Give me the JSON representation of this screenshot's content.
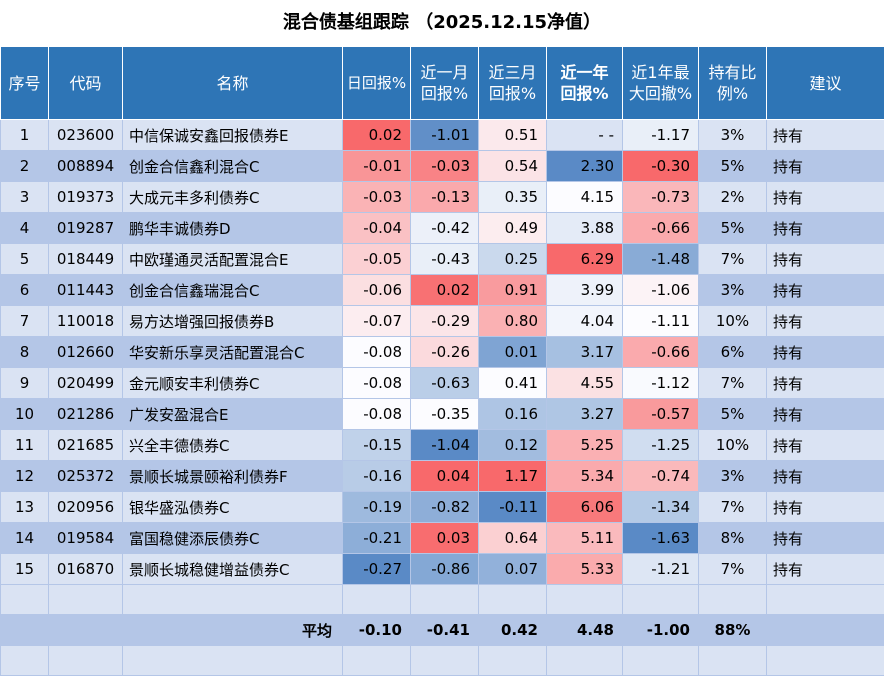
{
  "title": "混合债基组跟踪 （2025.12.15净值）",
  "headers": [
    {
      "line1": "序号",
      "line2": ""
    },
    {
      "line1": "代码",
      "line2": ""
    },
    {
      "line1": "名称",
      "line2": ""
    },
    {
      "line1": "日回报%",
      "line2": ""
    },
    {
      "line1": "近一月",
      "line2": "回报%"
    },
    {
      "line1": "近三月",
      "line2": "回报%"
    },
    {
      "line1": "近一年",
      "line2": "回报%"
    },
    {
      "line1": "近1年最",
      "line2": "大回撤%"
    },
    {
      "line1": "持有比",
      "line2": "例%"
    },
    {
      "line1": "建议",
      "line2": ""
    }
  ],
  "rows": [
    {
      "no": "1",
      "code": "023600",
      "name": "中信保诚安鑫回报债券E",
      "d": "0.02",
      "m1": "-1.01",
      "m3": "0.51",
      "y1": "- -",
      "dd": "-1.17",
      "hold": "3%",
      "adv": "持有"
    },
    {
      "no": "2",
      "code": "008894",
      "name": "创金合信鑫利混合C",
      "d": "-0.01",
      "m1": "-0.03",
      "m3": "0.54",
      "y1": "2.30",
      "dd": "-0.30",
      "hold": "5%",
      "adv": "持有"
    },
    {
      "no": "3",
      "code": "019373",
      "name": "大成元丰多利债券C",
      "d": "-0.03",
      "m1": "-0.13",
      "m3": "0.35",
      "y1": "4.15",
      "dd": "-0.73",
      "hold": "2%",
      "adv": "持有"
    },
    {
      "no": "4",
      "code": "019287",
      "name": "鹏华丰诚债券D",
      "d": "-0.04",
      "m1": "-0.42",
      "m3": "0.49",
      "y1": "3.88",
      "dd": "-0.66",
      "hold": "5%",
      "adv": "持有"
    },
    {
      "no": "5",
      "code": "018449",
      "name": "中欧瑾通灵活配置混合E",
      "d": "-0.05",
      "m1": "-0.43",
      "m3": "0.25",
      "y1": "6.29",
      "dd": "-1.48",
      "hold": "7%",
      "adv": "持有"
    },
    {
      "no": "6",
      "code": "011443",
      "name": "创金合信鑫瑞混合C",
      "d": "-0.06",
      "m1": "0.02",
      "m3": "0.91",
      "y1": "3.99",
      "dd": "-1.06",
      "hold": "3%",
      "adv": "持有"
    },
    {
      "no": "7",
      "code": "110018",
      "name": "易方达增强回报债券B",
      "d": "-0.07",
      "m1": "-0.29",
      "m3": "0.80",
      "y1": "4.04",
      "dd": "-1.11",
      "hold": "10%",
      "adv": "持有"
    },
    {
      "no": "8",
      "code": "012660",
      "name": "华安新乐享灵活配置混合C",
      "d": "-0.08",
      "m1": "-0.26",
      "m3": "0.01",
      "y1": "3.17",
      "dd": "-0.66",
      "hold": "6%",
      "adv": "持有"
    },
    {
      "no": "9",
      "code": "020499",
      "name": "金元顺安丰利债券C",
      "d": "-0.08",
      "m1": "-0.63",
      "m3": "0.41",
      "y1": "4.55",
      "dd": "-1.12",
      "hold": "7%",
      "adv": "持有"
    },
    {
      "no": "10",
      "code": "021286",
      "name": "广发安盈混合E",
      "d": "-0.08",
      "m1": "-0.35",
      "m3": "0.16",
      "y1": "3.27",
      "dd": "-0.57",
      "hold": "5%",
      "adv": "持有"
    },
    {
      "no": "11",
      "code": "021685",
      "name": "兴全丰德债券C",
      "d": "-0.15",
      "m1": "-1.04",
      "m3": "0.12",
      "y1": "5.25",
      "dd": "-1.25",
      "hold": "10%",
      "adv": "持有"
    },
    {
      "no": "12",
      "code": "025372",
      "name": "景顺长城景颐裕利债券F",
      "d": "-0.16",
      "m1": "0.04",
      "m3": "1.17",
      "y1": "5.34",
      "dd": "-0.74",
      "hold": "3%",
      "adv": "持有"
    },
    {
      "no": "13",
      "code": "020956",
      "name": "银华盛泓债券C",
      "d": "-0.19",
      "m1": "-0.82",
      "m3": "-0.11",
      "y1": "6.06",
      "dd": "-1.34",
      "hold": "7%",
      "adv": "持有"
    },
    {
      "no": "14",
      "code": "019584",
      "name": "富国稳健添辰债券C",
      "d": "-0.21",
      "m1": "0.03",
      "m3": "0.64",
      "y1": "5.11",
      "dd": "-1.63",
      "hold": "8%",
      "adv": "持有"
    },
    {
      "no": "15",
      "code": "016870",
      "name": "景顺长城稳健增益债券C",
      "d": "-0.27",
      "m1": "-0.86",
      "m3": "0.07",
      "y1": "5.33",
      "dd": "-1.21",
      "hold": "7%",
      "adv": "持有"
    }
  ],
  "average": {
    "label": "平均",
    "d": "-0.10",
    "m1": "-0.41",
    "m3": "0.42",
    "y1": "4.48",
    "dd": "-1.00",
    "hold": "88%"
  },
  "colors": {
    "header_bg": "#2e75b6",
    "row_light": "#dae3f3",
    "row_dark": "#b4c6e7",
    "heat_high": "#f8696b",
    "heat_low": "#5a8ac6",
    "heat_mid": "#fcfcff"
  }
}
